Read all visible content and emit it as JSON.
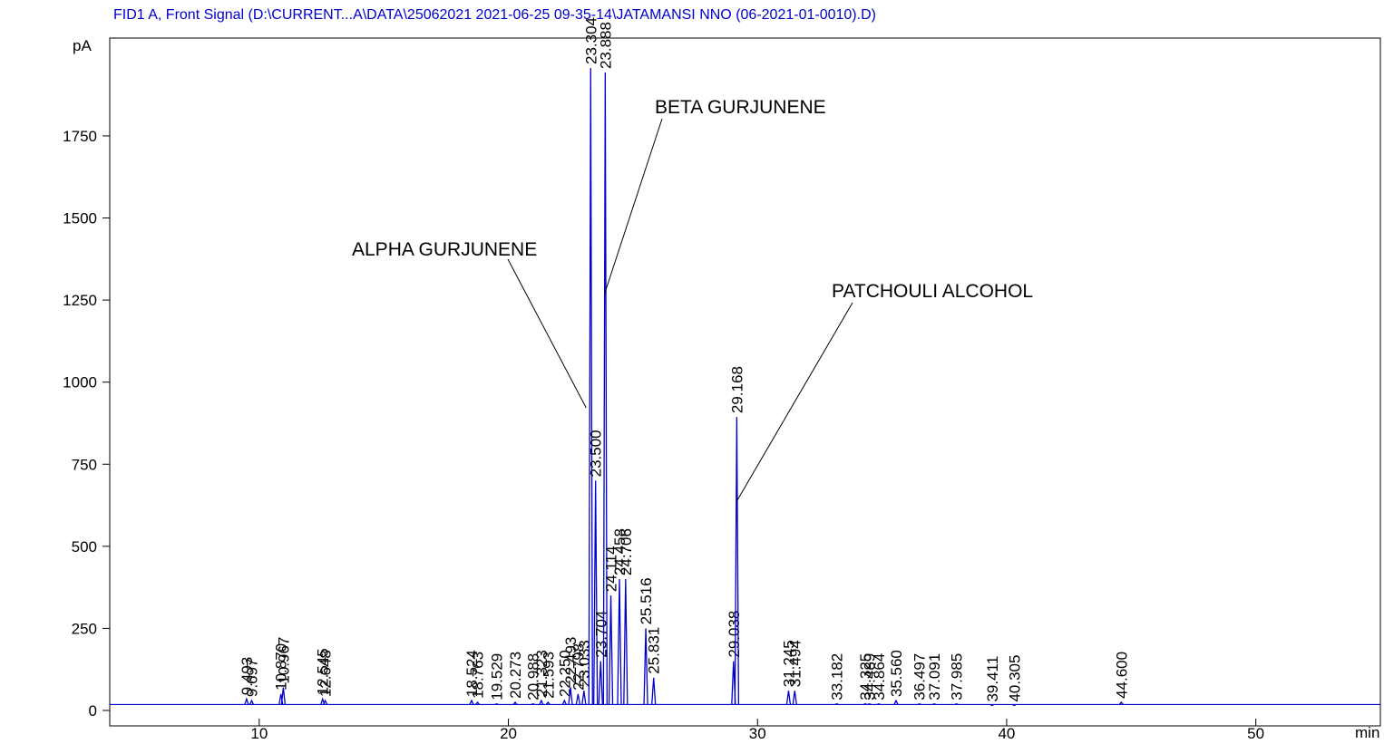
{
  "chart_data": {
    "type": "chromatogram",
    "title": "FID1 A, Front Signal (D:\\CURRENT...A\\DATA\\25062021 2021-06-25 09-35-14\\JATAMANSI NNO (06-2021-01-0010).D)",
    "y_label": "pA",
    "x_label": "min",
    "xlim": [
      4,
      55
    ],
    "ylim": [
      -47,
      2048
    ],
    "xticks": [
      10,
      20,
      30,
      40,
      50
    ],
    "yticks": [
      0,
      250,
      500,
      750,
      1000,
      1250,
      1500,
      1750
    ],
    "baseline": 18,
    "color": "#0000cc",
    "x": [
      "9.493",
      "9.697",
      "10.870",
      "10.967",
      "12.545",
      "12.648",
      "18.524",
      "18.763",
      "19.529",
      "20.273",
      "20.988",
      "21.323",
      "21.593",
      "22.250",
      "22.493",
      "22.798",
      "23.033",
      "23.304",
      "23.500",
      "23.704",
      "23.888",
      "24.114",
      "24.458",
      "24.706",
      "25.516",
      "25.831",
      "29.038",
      "29.168",
      "31.245",
      "31.494",
      "33.182",
      "34.325",
      "34.489",
      "34.864",
      "35.560",
      "36.497",
      "37.091",
      "37.985",
      "39.411",
      "40.305",
      "44.600"
    ],
    "values": [
      35,
      30,
      50,
      70,
      35,
      30,
      30,
      25,
      20,
      25,
      20,
      30,
      25,
      30,
      70,
      50,
      60,
      1957,
      700,
      150,
      1943,
      350,
      400,
      400,
      250,
      100,
      150,
      894,
      60,
      60,
      20,
      20,
      20,
      20,
      30,
      20,
      20,
      20,
      15,
      15,
      25
    ],
    "annotations": [
      {
        "text": "ALPHA GURJUNENE",
        "peak": 17
      },
      {
        "text": "BETA GURJUNENE",
        "peak": 20
      },
      {
        "text": "PATCHOULI ALCOHOL",
        "peak": 27
      }
    ]
  }
}
